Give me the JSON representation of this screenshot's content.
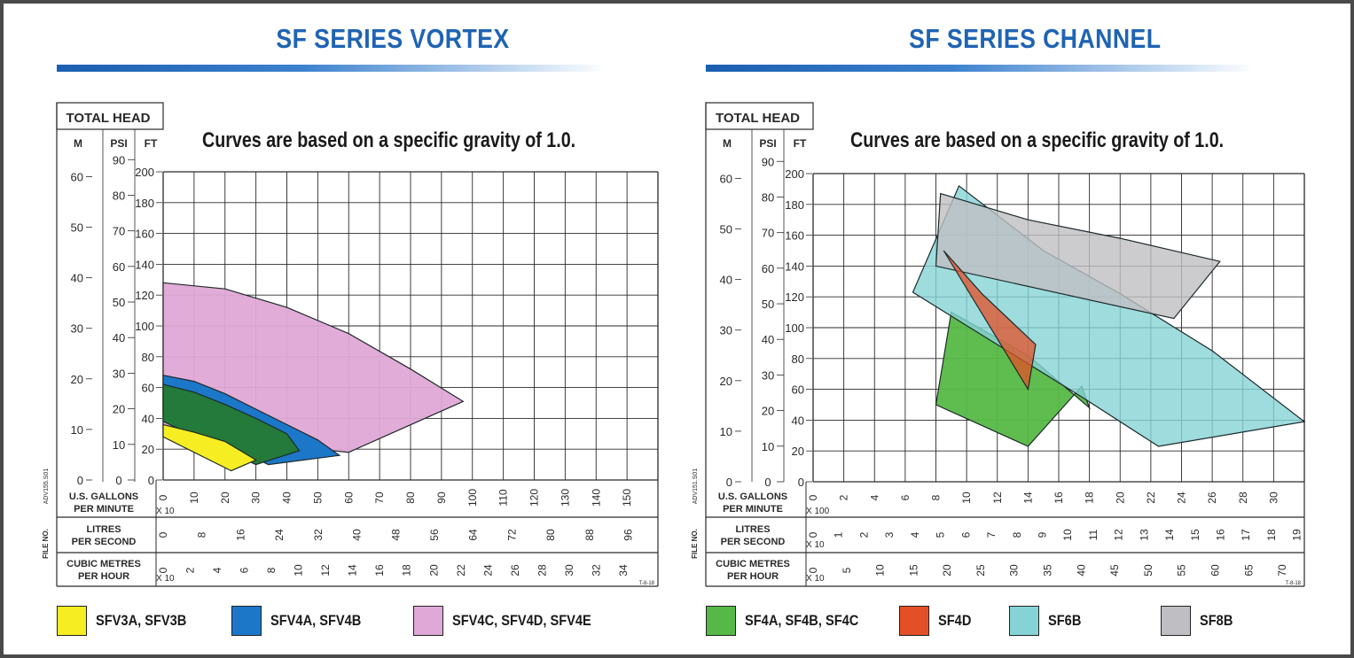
{
  "panels": [
    {
      "title": "SF SERIES VORTEX",
      "subtitle": "Curves are based on a specific gravity of 1.0.",
      "total_head_label": "TOTAL HEAD",
      "unit_labels": [
        "M",
        "PSI",
        "FT"
      ],
      "m_ticks": [
        "0",
        "10",
        "20",
        "30",
        "40",
        "50",
        "60"
      ],
      "psi_ticks": [
        "0",
        "10",
        "20",
        "30",
        "40",
        "50",
        "60",
        "70",
        "80",
        "90"
      ],
      "ft_ticks": [
        "0",
        "20",
        "40",
        "60",
        "80",
        "100",
        "120",
        "140",
        "160",
        "180",
        "200"
      ],
      "x_gpm_label": "U.S. GALLONS\nPER MINUTE",
      "x_gpm_mult": "X 10",
      "x_gpm_ticks": [
        "0",
        "10",
        "20",
        "30",
        "40",
        "50",
        "60",
        "70",
        "80",
        "90",
        "100",
        "110",
        "120",
        "130",
        "140",
        "150"
      ],
      "x_lps_label": "LITRES\nPER SECOND",
      "x_lps_mult": "",
      "x_lps_ticks": [
        "0",
        "8",
        "16",
        "24",
        "32",
        "40",
        "48",
        "56",
        "64",
        "72",
        "80",
        "88",
        "96"
      ],
      "x_cmh_label": "CUBIC METRES\nPER HOUR",
      "x_cmh_mult": "X 10",
      "x_cmh_ticks": [
        "0",
        "2",
        "4",
        "6",
        "8",
        "10",
        "12",
        "14",
        "16",
        "18",
        "20",
        "22",
        "24",
        "26",
        "28",
        "30",
        "32",
        "34"
      ],
      "file_no": "FILE NO.",
      "file_code": "ADV155.S01",
      "corner_code": "T-8-18"
    },
    {
      "title": "SF SERIES CHANNEL",
      "subtitle": "Curves are based on a specific gravity of 1.0.",
      "total_head_label": "TOTAL HEAD",
      "unit_labels": [
        "M",
        "PSI",
        "FT"
      ],
      "m_ticks": [
        "0",
        "10",
        "20",
        "30",
        "40",
        "50",
        "60"
      ],
      "psi_ticks": [
        "0",
        "10",
        "20",
        "30",
        "40",
        "50",
        "60",
        "70",
        "80",
        "90"
      ],
      "ft_ticks": [
        "0",
        "20",
        "40",
        "60",
        "80",
        "100",
        "120",
        "140",
        "160",
        "180",
        "200"
      ],
      "x_gpm_label": "U.S. GALLONS\nPER MINUTE",
      "x_gpm_mult": "X 100",
      "x_gpm_ticks": [
        "0",
        "2",
        "4",
        "6",
        "8",
        "10",
        "12",
        "14",
        "16",
        "18",
        "20",
        "22",
        "24",
        "26",
        "28",
        "30"
      ],
      "x_lps_label": "LITRES\nPER SECOND",
      "x_lps_mult": "X 10",
      "x_lps_ticks": [
        "0",
        "1",
        "2",
        "3",
        "4",
        "5",
        "6",
        "7",
        "8",
        "9",
        "10",
        "11",
        "12",
        "13",
        "14",
        "15",
        "16",
        "17",
        "18",
        "19"
      ],
      "x_cmh_label": "CUBIC METRES\nPER HOUR",
      "x_cmh_mult": "X 10",
      "x_cmh_ticks": [
        "0",
        "5",
        "10",
        "15",
        "20",
        "25",
        "30",
        "35",
        "40",
        "45",
        "50",
        "55",
        "60",
        "65",
        "70"
      ],
      "file_no": "FILE NO.",
      "file_code": "ADV151.S01",
      "corner_code": "T-8-18"
    }
  ],
  "legends": [
    [
      {
        "label": "SFV3A, SFV3B",
        "color": "#f6ee22"
      },
      {
        "label": "SFV4A, SFV4B",
        "color": "#1c77c9"
      },
      {
        "label": "SFV4C, SFV4D, SFV4E",
        "color": "#e0a8d6"
      }
    ],
    [
      {
        "label": "SF4A, SF4B, SF4C",
        "color": "#56b846"
      },
      {
        "label": "SF4D",
        "color": "#e35027"
      },
      {
        "label": "SF6B",
        "color": "#86d3d6"
      },
      {
        "label": "SF8B",
        "color": "#bfbfc3"
      }
    ]
  ],
  "chart_data": [
    {
      "type": "area",
      "title": "SF SERIES VORTEX",
      "xlabel": "U.S. GALLONS PER MINUTE X 10",
      "ylabel": "TOTAL HEAD FT",
      "xlim": [
        0,
        160
      ],
      "ylim": [
        0,
        200
      ],
      "grid": true,
      "legend_position": "bottom",
      "series": [
        {
          "name": "SFV4C, SFV4D, SFV4E",
          "color": "#e0a8d6",
          "opacity": 0.95,
          "x": [
            0,
            20,
            40,
            60,
            80,
            97,
            60,
            0
          ],
          "y": [
            128,
            124,
            112,
            95,
            72,
            51,
            18,
            30
          ]
        },
        {
          "name": "SFV4A, SFV4B",
          "color": "#1c77c9",
          "opacity": 1,
          "x": [
            0,
            10,
            20,
            30,
            40,
            50,
            57,
            34,
            0
          ],
          "y": [
            68,
            64,
            56,
            46,
            36,
            26,
            16,
            10,
            44
          ]
        },
        {
          "name": "SFV4A, SFV4B",
          "color": "#237a3a",
          "opacity": 1,
          "x": [
            0,
            10,
            20,
            30,
            40,
            44,
            30,
            0
          ],
          "y": [
            62,
            57,
            49,
            40,
            30,
            19,
            10,
            38
          ]
        },
        {
          "name": "SFV3A, SFV3B",
          "color": "#f6ee22",
          "opacity": 1,
          "x": [
            0,
            10,
            20,
            30,
            22,
            0
          ],
          "y": [
            36,
            31,
            25,
            13,
            6,
            28
          ]
        }
      ]
    },
    {
      "type": "area",
      "title": "SF SERIES CHANNEL",
      "xlabel": "U.S. GALLONS PER MINUTE X 100",
      "ylabel": "TOTAL HEAD FT",
      "xlim": [
        0,
        32
      ],
      "ylim": [
        0,
        200
      ],
      "grid": true,
      "legend_position": "bottom",
      "series": [
        {
          "name": "SF4A, SF4B, SF4C",
          "color": "#56b846",
          "opacity": 0.95,
          "x": [
            8,
            9,
            14,
            18,
            17.5,
            14,
            8
          ],
          "y": [
            50,
            110,
            82,
            48,
            62,
            23,
            50
          ]
        },
        {
          "name": "SF6B",
          "color": "#86d3d6",
          "opacity": 0.8,
          "x": [
            6.5,
            9.5,
            15,
            20,
            26,
            32,
            22.5,
            17.5,
            6.5
          ],
          "y": [
            123,
            192,
            150,
            122,
            85,
            39,
            23,
            55,
            123
          ]
        },
        {
          "name": "SF8B",
          "color": "#bfbfc3",
          "opacity": 0.8,
          "x": [
            8,
            8.3,
            14,
            20,
            26.5,
            23.5,
            8
          ],
          "y": [
            140,
            187,
            170,
            158,
            143,
            106,
            140
          ]
        },
        {
          "name": "SF4D",
          "color": "#e35027",
          "opacity": 0.75,
          "x": [
            8.5,
            11,
            14.5,
            14,
            8.5
          ],
          "y": [
            150,
            122,
            89,
            60,
            150
          ]
        }
      ]
    }
  ]
}
